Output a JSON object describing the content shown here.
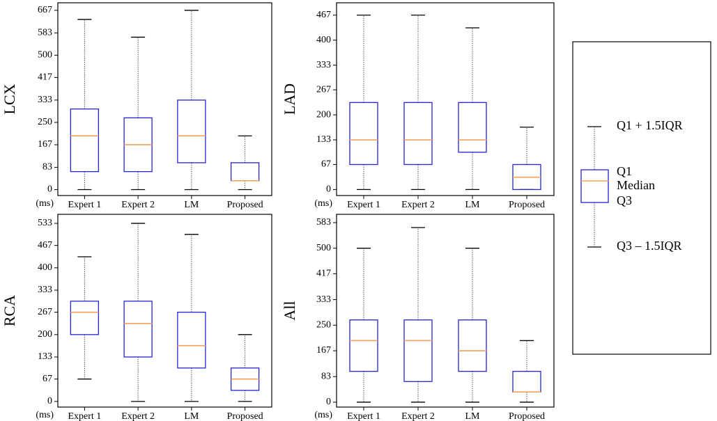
{
  "chart_data": [
    {
      "type": "box",
      "ylabel": "LCX",
      "unit": "(ms)",
      "categories": [
        "Expert 1",
        "Expert 2",
        "LM",
        "Proposed"
      ],
      "yticks": [
        0,
        83,
        167,
        250,
        333,
        417,
        500,
        583,
        667
      ],
      "ylim": [
        -22,
        695
      ],
      "boxes": [
        {
          "whisker_low": 0,
          "q1": 67,
          "median": 200,
          "q3": 300,
          "whisker_high": 633
        },
        {
          "whisker_low": 0,
          "q1": 67,
          "median": 167,
          "q3": 267,
          "whisker_high": 567
        },
        {
          "whisker_low": 0,
          "q1": 100,
          "median": 200,
          "q3": 333,
          "whisker_high": 667
        },
        {
          "whisker_low": 0,
          "q1": 33,
          "median": 33,
          "q3": 100,
          "whisker_high": 200
        }
      ]
    },
    {
      "type": "box",
      "ylabel": "LAD",
      "unit": "(ms)",
      "categories": [
        "Expert 1",
        "Expert 2",
        "LM",
        "Proposed"
      ],
      "yticks": [
        0,
        67,
        133,
        200,
        267,
        333,
        400,
        467
      ],
      "ylim": [
        -16,
        500
      ],
      "boxes": [
        {
          "whisker_low": 0,
          "q1": 67,
          "median": 133,
          "q3": 233,
          "whisker_high": 467
        },
        {
          "whisker_low": 0,
          "q1": 67,
          "median": 133,
          "q3": 233,
          "whisker_high": 467
        },
        {
          "whisker_low": 0,
          "q1": 100,
          "median": 133,
          "q3": 233,
          "whisker_high": 433
        },
        {
          "whisker_low": 0,
          "q1": 0,
          "median": 33,
          "q3": 67,
          "whisker_high": 167
        }
      ]
    },
    {
      "type": "box",
      "ylabel": "RCA",
      "unit": "(ms)",
      "categories": [
        "Expert 1",
        "Expert 2",
        "LM",
        "Proposed"
      ],
      "yticks": [
        0,
        67,
        133,
        200,
        267,
        333,
        400,
        467,
        533
      ],
      "ylim": [
        -17,
        560
      ],
      "boxes": [
        {
          "whisker_low": 67,
          "q1": 200,
          "median": 267,
          "q3": 300,
          "whisker_high": 433
        },
        {
          "whisker_low": 0,
          "q1": 133,
          "median": 233,
          "q3": 300,
          "whisker_high": 533
        },
        {
          "whisker_low": 0,
          "q1": 100,
          "median": 167,
          "q3": 267,
          "whisker_high": 500
        },
        {
          "whisker_low": 0,
          "q1": 33,
          "median": 67,
          "q3": 100,
          "whisker_high": 200
        }
      ]
    },
    {
      "type": "box",
      "ylabel": "All",
      "unit": "(ms)",
      "categories": [
        "Expert 1",
        "Expert 2",
        "LM",
        "Proposed"
      ],
      "yticks": [
        0,
        83,
        167,
        250,
        333,
        417,
        500,
        583
      ],
      "ylim": [
        -16,
        610
      ],
      "boxes": [
        {
          "whisker_low": 0,
          "q1": 100,
          "median": 200,
          "q3": 267,
          "whisker_high": 500
        },
        {
          "whisker_low": 0,
          "q1": 67,
          "median": 200,
          "q3": 267,
          "whisker_high": 567
        },
        {
          "whisker_low": 0,
          "q1": 100,
          "median": 167,
          "q3": 267,
          "whisker_high": 500
        },
        {
          "whisker_low": 0,
          "q1": 33,
          "median": 33,
          "q3": 100,
          "whisker_high": 200
        }
      ]
    }
  ],
  "legend": {
    "upper_whisker": "Q1 + 1.5IQR",
    "q1": "Q1",
    "median": "Median",
    "q3": "Q3",
    "lower_whisker": "Q3 – 1.5IQR"
  },
  "colors": {
    "box": "#2323d8",
    "median": "#f5a05a",
    "whisker": "#555555",
    "cap": "#000000",
    "frame": "#000000"
  }
}
